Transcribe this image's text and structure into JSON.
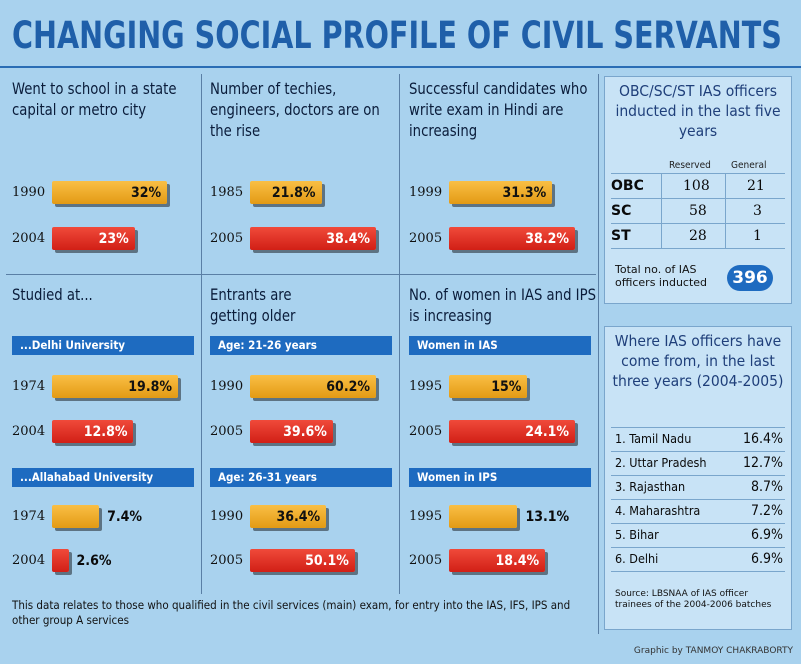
{
  "title": "CHANGING SOCIAL PROFILE OF CIVIL SERVANTS",
  "chart_data": [
    {
      "type": "bar",
      "title": "Went to school in a state capital or metro city",
      "categories": [
        "1990",
        "2004"
      ],
      "values": [
        32,
        23
      ],
      "labels": [
        "32%",
        "23%"
      ],
      "max": 35
    },
    {
      "type": "bar",
      "title": "Number of techies, engineers, doctors are on the rise",
      "categories": [
        "1985",
        "2005"
      ],
      "values": [
        21.8,
        38.4
      ],
      "labels": [
        "21.8%",
        "38.4%"
      ],
      "max": 38.4
    },
    {
      "type": "bar",
      "title": "Successful candidates who write exam in Hindi are increasing",
      "categories": [
        "1999",
        "2005"
      ],
      "values": [
        31.3,
        38.2
      ],
      "labels": [
        "31.3%",
        "38.2%"
      ],
      "max": 38.2
    },
    {
      "type": "bar",
      "title": "Studied at...",
      "groups": [
        {
          "name": "...Delhi University",
          "categories": [
            "1974",
            "2004"
          ],
          "values": [
            19.8,
            12.8
          ],
          "labels": [
            "19.8%",
            "12.8%"
          ]
        },
        {
          "name": "...Allahabad University",
          "categories": [
            "1974",
            "2004"
          ],
          "values": [
            7.4,
            2.6
          ],
          "labels": [
            "7.4%",
            "2.6%"
          ]
        }
      ],
      "max": 19.8
    },
    {
      "type": "bar",
      "title": "Entrants are getting older",
      "groups": [
        {
          "name": "Age: 21-26 years",
          "categories": [
            "1990",
            "2005"
          ],
          "values": [
            60.2,
            39.6
          ],
          "labels": [
            "60.2%",
            "39.6%"
          ]
        },
        {
          "name": "Age: 26-31 years",
          "categories": [
            "1990",
            "2005"
          ],
          "values": [
            36.4,
            50.1
          ],
          "labels": [
            "36.4%",
            "50.1%"
          ]
        }
      ],
      "max": 60.2
    },
    {
      "type": "bar",
      "title": "No. of women in IAS and IPS is increasing",
      "groups": [
        {
          "name": "Women in IAS",
          "categories": [
            "1995",
            "2005"
          ],
          "values": [
            15,
            24.1
          ],
          "labels": [
            "15%",
            "24.1%"
          ]
        },
        {
          "name": "Women in IPS",
          "categories": [
            "1995",
            "2005"
          ],
          "values": [
            13.1,
            18.4
          ],
          "labels": [
            "13.1%",
            "18.4%"
          ]
        }
      ],
      "max": 24.1
    },
    {
      "type": "table",
      "title": "OBC/SC/ST IAS officers inducted in the last five years",
      "columns": [
        "Reserved",
        "General"
      ],
      "rows": [
        {
          "label": "OBC",
          "reserved": "108",
          "general": "21"
        },
        {
          "label": "SC",
          "reserved": "58",
          "general": "3"
        },
        {
          "label": "ST",
          "reserved": "28",
          "general": "1"
        }
      ],
      "total_label": "Total no. of IAS officers inducted",
      "total_value": "396"
    },
    {
      "type": "table",
      "title": "Where IAS officers have come from, in the last three years (2004-2005)",
      "rows": [
        {
          "label": "1. Tamil Nadu",
          "value": "16.4%"
        },
        {
          "label": "2. Uttar Pradesh",
          "value": "12.7%"
        },
        {
          "label": "3. Rajasthan",
          "value": "8.7%"
        },
        {
          "label": "4. Maharashtra",
          "value": "7.2%"
        },
        {
          "label": "5. Bihar",
          "value": "6.9%"
        },
        {
          "label": "6. Delhi",
          "value": "6.9%"
        }
      ],
      "source": "Source: LBSNAA of IAS officer trainees of the 2004-2006 batches"
    }
  ],
  "footnote": "This data relates to those who qualified in the civil services (main) exam, for entry into the IAS, IFS, IPS and other group A services",
  "credit": "Graphic by TANMOY CHAKRABORTY",
  "colors": {
    "orange": "#f2a922",
    "red": "#e02a1f",
    "blue": "#1e6bc0",
    "title": "#1f5fa9",
    "background": "#a9d2ee"
  }
}
